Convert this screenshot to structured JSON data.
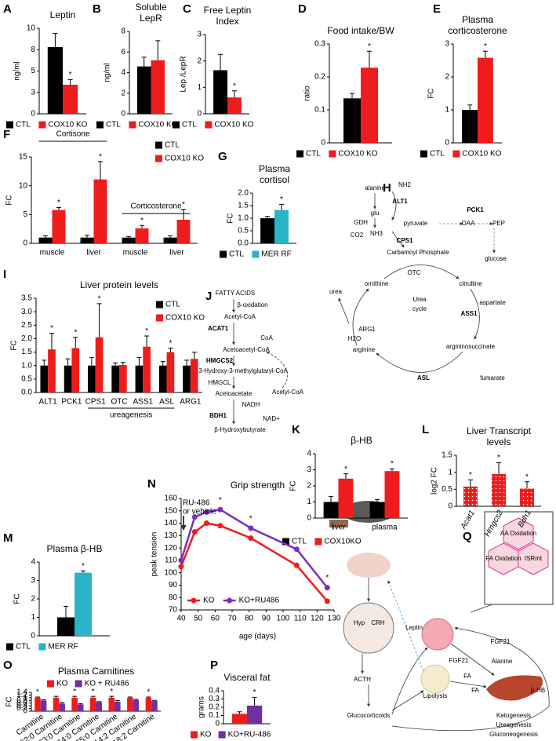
{
  "chart_data": [
    {
      "panel": "A",
      "type": "bar",
      "title": "Leptin",
      "ylabel": "ng/ml",
      "categories": [
        null
      ],
      "ylim": [
        0,
        10
      ],
      "yticks": [
        0,
        {
          "value": 2.5,
          "label": "3"
        },
        5,
        {
          "value": 7.5,
          "label": "8"
        },
        10
      ],
      "legend": "bottom",
      "series": [
        {
          "name": "CTL",
          "color": "#000000",
          "values": [
            7.8
          ],
          "errors": [
            1.6
          ],
          "significance": [
            null
          ]
        },
        {
          "name": "COX10 KO",
          "color": "#ee1c1c",
          "values": [
            3.4
          ],
          "errors": [
            0.6
          ],
          "significance": [
            "*"
          ]
        }
      ]
    },
    {
      "panel": "B",
      "type": "bar",
      "title": [
        "Soluble",
        "LepR"
      ],
      "ylabel": "ng/ml",
      "categories": [
        null
      ],
      "ylim": [
        0,
        8
      ],
      "yticks": [
        0,
        2,
        4,
        6,
        8
      ],
      "legend": "bottom",
      "series": [
        {
          "name": "CTL",
          "color": "#000000",
          "values": [
            4.6
          ],
          "errors": [
            0.9
          ],
          "significance": [
            null
          ]
        },
        {
          "name": "COX10 KO",
          "color": "#ee1c1c",
          "values": [
            5.2
          ],
          "errors": [
            1.9
          ],
          "significance": [
            null
          ]
        }
      ]
    },
    {
      "panel": "C",
      "type": "bar",
      "title": [
        "Free Leptin",
        "Index"
      ],
      "ylabel": "Lep /LepR",
      "categories": [
        null
      ],
      "ylim": [
        0,
        3
      ],
      "yticks": [
        0,
        1,
        2,
        3
      ],
      "legend": "bottom",
      "series": [
        {
          "name": "CTL",
          "color": "#000000",
          "values": [
            1.65
          ],
          "errors": [
            0.6
          ],
          "significance": [
            null
          ]
        },
        {
          "name": "COX10 KO",
          "color": "#ee1c1c",
          "values": [
            0.62
          ],
          "errors": [
            0.25
          ],
          "significance": [
            "*"
          ]
        }
      ]
    },
    {
      "panel": "D",
      "type": "bar",
      "title": "Food intake/BW",
      "ylabel": "ratio",
      "categories": [
        null
      ],
      "ylim": [
        0,
        0.3
      ],
      "yticks": [
        0,
        0.1,
        0.2,
        0.3
      ],
      "legend": "bottom",
      "series": [
        {
          "name": "CTL",
          "color": "#000000",
          "values": [
            0.135
          ],
          "errors": [
            0.015
          ],
          "significance": [
            null
          ]
        },
        {
          "name": "COX10 KO",
          "color": "#ee1c1c",
          "values": [
            0.228
          ],
          "errors": [
            0.05
          ],
          "significance": [
            "*"
          ]
        }
      ]
    },
    {
      "panel": "E",
      "type": "bar",
      "title": [
        "Plasma",
        "corticosterone"
      ],
      "ylabel": "FC",
      "categories": [
        null
      ],
      "ylim": [
        0,
        3
      ],
      "yticks": [
        0,
        1,
        2,
        3
      ],
      "legend": "bottom",
      "series": [
        {
          "name": "CTL",
          "color": "#000000",
          "values": [
            1.0
          ],
          "errors": [
            0.15
          ],
          "significance": [
            null
          ]
        },
        {
          "name": "COX10 KO",
          "color": "#ee1c1c",
          "values": [
            2.58
          ],
          "errors": [
            0.2
          ],
          "significance": [
            "*"
          ]
        }
      ]
    },
    {
      "panel": "F",
      "type": "bar",
      "ylabel": "FC",
      "categories": [
        "muscle",
        "liver",
        "muscle",
        "liver"
      ],
      "group_labels": [
        "Cortisone",
        "Corticosterone"
      ],
      "ylim": [
        0,
        15
      ],
      "yticks": [
        0,
        5,
        10,
        15
      ],
      "legend": "upper right",
      "series": [
        {
          "name": "CTL",
          "color": "#000000",
          "values": [
            1.0,
            1.0,
            1.0,
            1.0
          ],
          "errors": [
            0.3,
            0.4,
            0.2,
            0.3
          ],
          "significance": [
            null,
            null,
            null,
            null
          ]
        },
        {
          "name": "COX10 KO",
          "color": "#ee1c1c",
          "values": [
            5.8,
            11.1,
            2.6,
            4.1
          ],
          "errors": [
            0.4,
            3.1,
            0.5,
            1.8
          ],
          "significance": [
            "*",
            "*",
            "*",
            "*"
          ]
        }
      ]
    },
    {
      "panel": "G",
      "type": "bar",
      "title": [
        "Plasma",
        "cortisol"
      ],
      "ylabel": "FC",
      "categories": [
        null
      ],
      "ylim": [
        0,
        2
      ],
      "yticks": [
        {
          "value": 0,
          "label": "0.0"
        },
        0.5,
        {
          "value": 1,
          "label": "1.0"
        },
        1.5,
        {
          "value": 2,
          "label": "2.0"
        }
      ],
      "legend": "bottom",
      "series": [
        {
          "name": "CTL",
          "color": "#000000",
          "values": [
            1.0
          ],
          "errors": [
            0.08
          ],
          "significance": [
            null
          ]
        },
        {
          "name": "MER RF",
          "color": "#2bb3c6",
          "values": [
            1.33
          ],
          "errors": [
            0.22
          ],
          "significance": [
            "*"
          ]
        }
      ]
    },
    {
      "panel": "I",
      "type": "bar",
      "title": "Liver protein levels",
      "ylabel": "FC",
      "categories": [
        "ALT1",
        "PCK1",
        "CPS1",
        "OTC",
        "ASS1",
        "ASL",
        "ARG1"
      ],
      "group_labels": [
        "ureagenesis"
      ],
      "ylim": [
        0,
        3.5
      ],
      "yticks": [
        {
          "value": 0,
          "label": "0.0"
        },
        0.5,
        {
          "value": 1,
          "label": "1.0"
        },
        1.5,
        {
          "value": 2,
          "label": "2.0"
        },
        2.5,
        {
          "value": 3,
          "label": "3.0"
        },
        3.5
      ],
      "legend": "upper right",
      "series": [
        {
          "name": "CTL",
          "color": "#000000",
          "values": [
            1.0,
            1.0,
            1.0,
            1.0,
            1.0,
            1.0,
            1.0
          ],
          "errors": [
            0.2,
            0.25,
            0.3,
            0.1,
            0.3,
            0.15,
            0.2
          ],
          "significance": [
            null,
            null,
            null,
            null,
            null,
            null,
            null
          ]
        },
        {
          "name": "COX10 KO",
          "color": "#ee1c1c",
          "values": [
            1.6,
            1.65,
            2.05,
            1.02,
            1.7,
            1.5,
            1.25
          ],
          "errors": [
            0.6,
            0.4,
            1.25,
            0.1,
            0.4,
            0.15,
            0.25
          ],
          "significance": [
            "*",
            "*",
            "*",
            null,
            "*",
            "*",
            null
          ]
        }
      ]
    },
    {
      "panel": "K",
      "type": "bar",
      "title": "β-HB",
      "ylabel": "FC",
      "categories": [
        "liver",
        "plasma"
      ],
      "ylim": [
        0,
        4
      ],
      "yticks": [
        0,
        1,
        2,
        3,
        4
      ],
      "legend": "bottom",
      "series": [
        {
          "name": "CTL",
          "color": "#000000",
          "values": [
            1.0,
            1.0
          ],
          "errors": [
            0.35,
            0.15
          ],
          "significance": [
            null,
            null
          ]
        },
        {
          "name": "COX10KO",
          "color": "#ee1c1c",
          "values": [
            2.45,
            2.92
          ],
          "errors": [
            0.3,
            0.15
          ],
          "significance": [
            "*",
            "*"
          ]
        }
      ]
    },
    {
      "panel": "L",
      "type": "bar",
      "title": [
        "Liver Transcript",
        "levels"
      ],
      "ylabel": "log2 FC",
      "categories": [
        "Acat1",
        "Hmgcs2",
        "Bdh1"
      ],
      "ylim": [
        0,
        1.5
      ],
      "yticks": [
        0,
        0.5,
        1,
        1.5
      ],
      "pattern": "dots",
      "series": [
        {
          "color": "#ee1c1c",
          "values": [
            0.58,
            0.95,
            0.52
          ],
          "errors": [
            0.2,
            0.33,
            0.2
          ],
          "significance": [
            "*",
            "*",
            "*"
          ]
        }
      ]
    },
    {
      "panel": "M",
      "type": "bar",
      "title": "Plasma β-HB",
      "ylabel": "FC",
      "categories": [
        null
      ],
      "ylim": [
        0,
        4
      ],
      "yticks": [
        0,
        1,
        2,
        3,
        4
      ],
      "legend": "bottom",
      "series": [
        {
          "name": "CTL",
          "color": "#000000",
          "values": [
            1.0
          ],
          "errors": [
            0.6
          ],
          "significance": [
            null
          ]
        },
        {
          "name": "MER RF",
          "color": "#2bb3c6",
          "values": [
            3.42
          ],
          "errors": [
            0.1
          ],
          "significance": [
            "*"
          ]
        }
      ]
    },
    {
      "panel": "N",
      "type": "line",
      "title": "Grip strength",
      "xlabel": "age (days)",
      "ylabel": "peak tension",
      "annotation": [
        "RU-486",
        "or vehicle"
      ],
      "x": [
        40,
        48,
        55,
        63,
        81,
        108,
        126
      ],
      "xlim": [
        40,
        130
      ],
      "xticks": [
        40,
        50,
        60,
        70,
        80,
        90,
        100,
        110,
        120,
        130
      ],
      "ylim": [
        70,
        160
      ],
      "yticks": [
        70,
        80,
        90,
        100,
        110,
        120,
        130,
        140,
        150,
        160
      ],
      "legend": "lower left",
      "significance": [
        null,
        null,
        null,
        "*",
        "*",
        null,
        "*"
      ],
      "series": [
        {
          "name": "KO",
          "color": "#ee1c1c",
          "values": [
            105,
            133,
            140,
            138,
            128,
            106,
            77
          ]
        },
        {
          "name": "KO+RU486",
          "color": "#7b2fbe",
          "values": [
            110,
            145,
            149,
            151,
            136,
            119,
            88
          ]
        }
      ]
    },
    {
      "panel": "O",
      "type": "bar",
      "title": "Plasma Carnitines",
      "ylabel": "FC",
      "categories": [
        "Carnitine",
        "C2:0 Carnitine",
        "C3:0 Carnitine",
        "C4:0 Carnitine",
        "C5:0 Carnitine",
        "C14:2 Carnitine",
        "C18:2 Carnitine"
      ],
      "ylim": [
        0,
        1.4
      ],
      "yticks": [
        0,
        0.2,
        0.4,
        0.6,
        0.8,
        1,
        1.2,
        1.4
      ],
      "legend": "top",
      "series": [
        {
          "name": "KO",
          "color": "#ee1c1c",
          "values": [
            1.0,
            1.0,
            1.0,
            1.0,
            1.0,
            1.0,
            1.0
          ],
          "errors": [
            0.05,
            0.1,
            0.1,
            0.1,
            0.1,
            0.05,
            0.05
          ],
          "significance": [
            "*",
            null,
            "*",
            "*",
            "*",
            null,
            "*"
          ]
        },
        {
          "name": "KO + RU486",
          "color": "#7030a0",
          "values": [
            0.8,
            0.57,
            0.51,
            0.66,
            0.7,
            0.83,
            0.75
          ],
          "errors": [
            0.05,
            0.08,
            0.05,
            0.05,
            0.08,
            0.05,
            0.05
          ],
          "significance": [
            null,
            null,
            null,
            null,
            null,
            null,
            null
          ]
        }
      ]
    },
    {
      "panel": "P",
      "type": "bar",
      "title": "Visceral fat",
      "ylabel": "grams",
      "categories": [
        null
      ],
      "ylim": [
        0,
        0.4
      ],
      "yticks": [
        0,
        0.1,
        0.2,
        0.3,
        0.4
      ],
      "legend": "bottom",
      "series": [
        {
          "name": "KO",
          "color": "#ee1c1c",
          "values": [
            0.12
          ],
          "errors": [
            0.025
          ],
          "significance": [
            null
          ]
        },
        {
          "name": "KO+RU-486",
          "color": "#7030a0",
          "values": [
            0.22
          ],
          "errors": [
            0.1
          ],
          "significance": [
            "*"
          ]
        }
      ]
    }
  ],
  "diagram_h": {
    "panel": "H",
    "labels": [
      "alanine",
      "NH2",
      "ALT1",
      "glu",
      "GDH",
      "pyruvate",
      "PCK1",
      "OAA",
      "PEP",
      "CO2",
      "NH3",
      "CPS1",
      "glucose",
      "Carbamoyl Phosphate",
      "OTC",
      "ornithine",
      "citrulline",
      "urea",
      "Urea",
      "cycle",
      "aspartate",
      "ASS1",
      "ARG1",
      "H2O",
      "arginine",
      "argininosuccinate",
      "ASL",
      "fumarate"
    ]
  },
  "diagram_j": {
    "panel": "J",
    "labels": [
      "FATTY ACIDS",
      "β-oxidation",
      "Acetyl-CoA",
      "ACAT1",
      "CoA",
      "Acetoacetyl-CoA",
      "HMGCS2",
      "3-Hydroxy-3-methylglutaryl-CoA",
      "HMGCL",
      "Acetyl-CoA",
      "Acetoacetate",
      "NADH",
      "BDH1",
      "NAD+",
      "β-Hydroxybutyrate"
    ]
  },
  "diagram_q": {
    "panel": "Q",
    "labels": [
      "AA Oxidation",
      "FA Oxidation",
      "ISRmt",
      "Hyp",
      "CRH",
      "Leptin",
      "ACTH",
      "FGF21",
      "FA",
      "Lipolysis",
      "Glucocorticoids",
      "FGF21",
      "Alanine",
      "FA",
      "β-HB",
      "Ketogenesis",
      "Ureagenesis",
      "Gluconeogenesis"
    ]
  }
}
